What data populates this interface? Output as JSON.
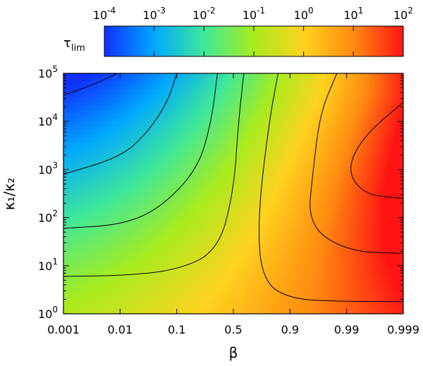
{
  "chart_data": {
    "type": "heatmap",
    "title": "",
    "xlabel": "β",
    "ylabel": "κ₁/κ₂",
    "x_ticks": [
      "0.001",
      "0.01",
      "0.1",
      "0.5",
      "0.9",
      "0.99",
      "0.999"
    ],
    "y_ticks": [
      {
        "base": "10",
        "exp": "0"
      },
      {
        "base": "10",
        "exp": "1"
      },
      {
        "base": "10",
        "exp": "2"
      },
      {
        "base": "10",
        "exp": "3"
      },
      {
        "base": "10",
        "exp": "4"
      },
      {
        "base": "10",
        "exp": "5"
      }
    ],
    "y_range": [
      1,
      100000
    ],
    "y_scale": "log",
    "colorbar": {
      "label_main": "τ",
      "label_sub": "lim",
      "scale": "log",
      "range": [
        0.0001,
        100
      ],
      "ticks": [
        {
          "base": "10",
          "exp": "-4"
        },
        {
          "base": "10",
          "exp": "-3"
        },
        {
          "base": "10",
          "exp": "-2"
        },
        {
          "base": "10",
          "exp": "-1"
        },
        {
          "base": "10",
          "exp": "0"
        },
        {
          "base": "10",
          "exp": "1"
        },
        {
          "base": "10",
          "exp": "2"
        }
      ],
      "colors": [
        "#1030ff",
        "#00a8ff",
        "#3ee89a",
        "#a8ec1e",
        "#ffd21e",
        "#ff8a10",
        "#ff1414"
      ]
    },
    "contours": [
      {
        "points": [
          [
            0.001,
            35000
          ],
          [
            0.003,
            55000
          ],
          [
            0.006,
            80000
          ],
          [
            0.009,
            100000
          ]
        ]
      },
      {
        "points": [
          [
            0.001,
            800
          ],
          [
            0.01,
            1800
          ],
          [
            0.03,
            5500
          ],
          [
            0.07,
            25000
          ],
          [
            0.1,
            100000
          ]
        ]
      },
      {
        "points": [
          [
            0.001,
            60
          ],
          [
            0.01,
            70
          ],
          [
            0.05,
            150
          ],
          [
            0.2,
            1000
          ],
          [
            0.3,
            10000
          ],
          [
            0.35,
            100000
          ]
        ]
      },
      {
        "points": [
          [
            0.001,
            6
          ],
          [
            0.01,
            6.2
          ],
          [
            0.1,
            8
          ],
          [
            0.35,
            20
          ],
          [
            0.5,
            300
          ],
          [
            0.55,
            10000
          ],
          [
            0.6,
            100000
          ]
        ]
      },
      {
        "points": [
          [
            0.999,
            1.8
          ],
          [
            0.99,
            1.8
          ],
          [
            0.9,
            2
          ],
          [
            0.75,
            5
          ],
          [
            0.72,
            100
          ],
          [
            0.8,
            10000
          ],
          [
            0.85,
            100000
          ]
        ]
      },
      {
        "points": [
          [
            0.999,
            18
          ],
          [
            0.99,
            20
          ],
          [
            0.95,
            70
          ],
          [
            0.96,
            1000
          ],
          [
            0.97,
            15000
          ],
          [
            0.985,
            100000
          ]
        ]
      },
      {
        "points": [
          [
            0.999,
            250
          ],
          [
            0.995,
            300
          ],
          [
            0.99,
            1000
          ],
          [
            0.995,
            5000
          ],
          [
            0.999,
            25000
          ]
        ]
      }
    ]
  }
}
